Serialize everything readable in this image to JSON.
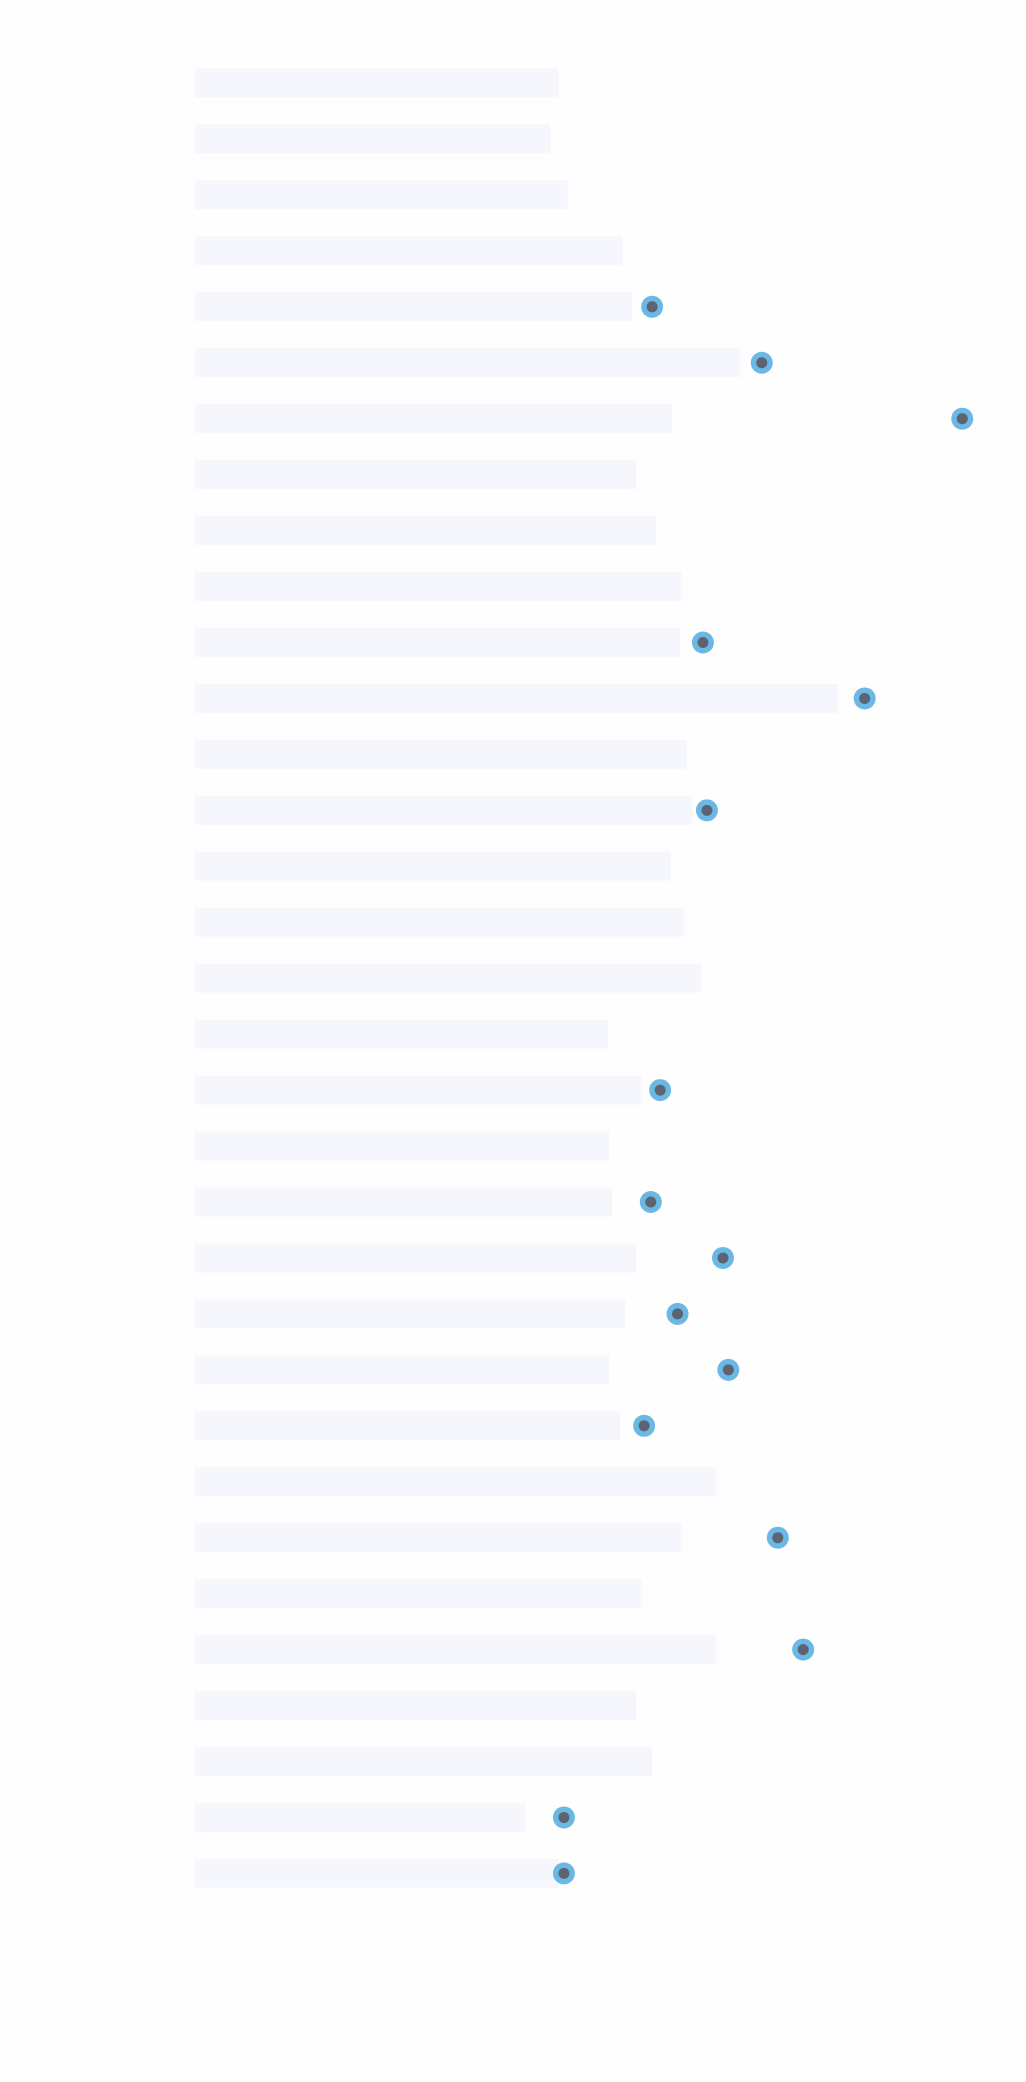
{
  "chart_data": {
    "type": "bar-dot",
    "categories": [
      null,
      null,
      null,
      null,
      null,
      null,
      null,
      null,
      null,
      null,
      null,
      null,
      null,
      null,
      null,
      null,
      null,
      null,
      null,
      null,
      null,
      null,
      null,
      null,
      null,
      null,
      null,
      null,
      null,
      null,
      null,
      null,
      null
    ],
    "series": [
      {
        "color": "#f6f7fd",
        "values": [
          272,
          266,
          279,
          320,
          327,
          408,
          357,
          330,
          345,
          364,
          363,
          481,
          368,
          372,
          356,
          366,
          379,
          309,
          334,
          310,
          312,
          330,
          322,
          310,
          318,
          390,
          364,
          334,
          390,
          330,
          342,
          247,
          272
        ]
      },
      {
        "color": "#6cb8e4",
        "values": [
          null,
          null,
          null,
          null,
          342,
          424,
          574,
          null,
          null,
          null,
          380,
          501,
          null,
          383,
          null,
          null,
          null,
          null,
          348,
          null,
          341,
          395,
          361,
          399,
          336,
          null,
          436,
          null,
          455,
          null,
          null,
          276,
          276
        ]
      }
    ],
    "dot_center_color": "#5b6470",
    "xlim": [
      0,
      600
    ]
  }
}
